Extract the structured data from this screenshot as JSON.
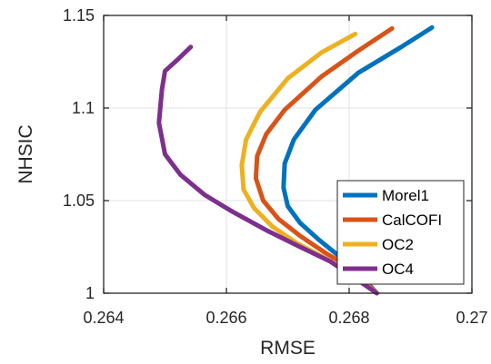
{
  "chart_data": {
    "type": "line",
    "xlabel": "RMSE",
    "ylabel": "NHSIC",
    "xlim": [
      0.264,
      0.27
    ],
    "ylim": [
      1.0,
      1.15
    ],
    "xticks": [
      0.264,
      0.266,
      0.268,
      0.27
    ],
    "xtick_labels": [
      "0.264",
      "0.266",
      "0.268",
      "0.27"
    ],
    "yticks": [
      1.0,
      1.05,
      1.1,
      1.15
    ],
    "ytick_labels": [
      "1",
      "1.05",
      "1.1",
      "1.15"
    ],
    "grid": true,
    "legend_position": "bottom-right",
    "series": [
      {
        "name": "Morel1",
        "color": "#0072BD",
        "points": [
          [
            0.26935,
            1.1435
          ],
          [
            0.26885,
            1.133
          ],
          [
            0.26815,
            1.119
          ],
          [
            0.26745,
            1.099
          ],
          [
            0.2671,
            1.083
          ],
          [
            0.26695,
            1.07
          ],
          [
            0.26693,
            1.057
          ],
          [
            0.267,
            1.047
          ],
          [
            0.2672,
            1.038
          ],
          [
            0.2675,
            1.029
          ],
          [
            0.2678,
            1.021
          ],
          [
            0.2681,
            1.013
          ],
          [
            0.26845,
            1.0
          ]
        ]
      },
      {
        "name": "CalCOFI",
        "color": "#D95319",
        "points": [
          [
            0.2687,
            1.143
          ],
          [
            0.26815,
            1.131
          ],
          [
            0.26755,
            1.117
          ],
          [
            0.26695,
            1.099
          ],
          [
            0.26665,
            1.086
          ],
          [
            0.2665,
            1.074
          ],
          [
            0.26648,
            1.062
          ],
          [
            0.2666,
            1.05
          ],
          [
            0.26685,
            1.04
          ],
          [
            0.2672,
            1.031
          ],
          [
            0.2676,
            1.022
          ],
          [
            0.268,
            1.014
          ],
          [
            0.26845,
            1.0
          ]
        ]
      },
      {
        "name": "OC2",
        "color": "#EDB120",
        "points": [
          [
            0.2681,
            1.14
          ],
          [
            0.26755,
            1.13
          ],
          [
            0.267,
            1.116
          ],
          [
            0.26655,
            1.098
          ],
          [
            0.26632,
            1.083
          ],
          [
            0.26625,
            1.069
          ],
          [
            0.26628,
            1.056
          ],
          [
            0.26645,
            1.046
          ],
          [
            0.26675,
            1.036
          ],
          [
            0.26715,
            1.027
          ],
          [
            0.2676,
            1.019
          ],
          [
            0.268,
            1.011
          ],
          [
            0.26845,
            1.0
          ]
        ]
      },
      {
        "name": "OC4",
        "color": "#7E2F8E",
        "points": [
          [
            0.26542,
            1.133
          ],
          [
            0.2652,
            1.126
          ],
          [
            0.265,
            1.12
          ],
          [
            0.26495,
            1.11
          ],
          [
            0.2649,
            1.092
          ],
          [
            0.265,
            1.075
          ],
          [
            0.26525,
            1.064
          ],
          [
            0.26565,
            1.053
          ],
          [
            0.2661,
            1.044
          ],
          [
            0.26665,
            1.034
          ],
          [
            0.2672,
            1.025
          ],
          [
            0.2677,
            1.017
          ],
          [
            0.2681,
            1.008
          ],
          [
            0.26845,
            1.0
          ]
        ]
      }
    ]
  }
}
